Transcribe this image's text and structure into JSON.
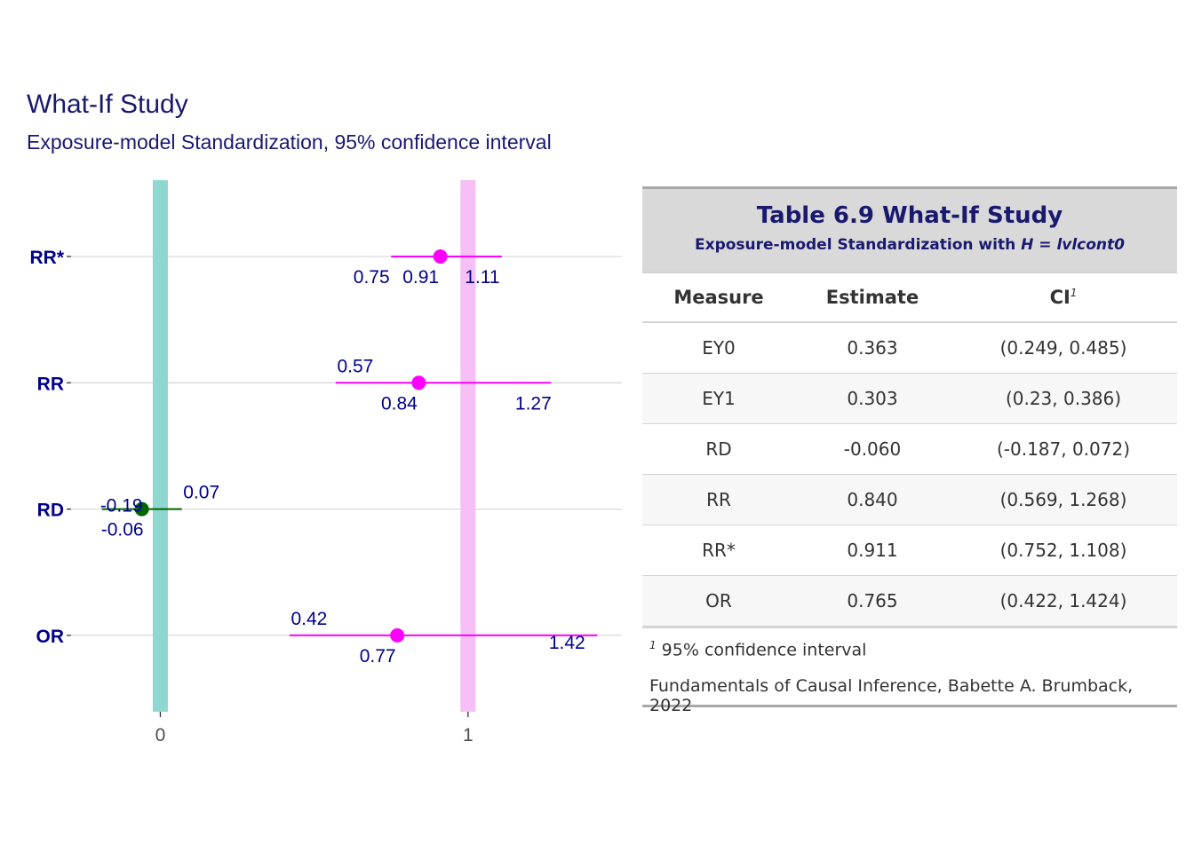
{
  "plot": {
    "title": "What-If Study",
    "subtitle": "Exposure-model Standardization, 95% confidence interval"
  },
  "chart_data": {
    "type": "forest",
    "categories": [
      "RR*",
      "RR",
      "RD",
      "OR"
    ],
    "points": [
      {
        "measure": "RR*",
        "estimate": 0.91,
        "lower": 0.75,
        "upper": 1.11,
        "estimate_label": "0.91",
        "lower_label": "0.75",
        "upper_label": "1.11",
        "color": "#ff00ff"
      },
      {
        "measure": "RR",
        "estimate": 0.84,
        "lower": 0.57,
        "upper": 1.27,
        "estimate_label": "0.84",
        "lower_label": "0.57",
        "upper_label": "1.27",
        "color": "#ff00ff"
      },
      {
        "measure": "RD",
        "estimate": -0.06,
        "lower": -0.19,
        "upper": 0.07,
        "estimate_label": "-0.06",
        "lower_label": "-0.19",
        "upper_label": "0.07",
        "color": "#006400"
      },
      {
        "measure": "OR",
        "estimate": 0.77,
        "lower": 0.42,
        "upper": 1.42,
        "estimate_label": "0.77",
        "lower_label": "0.42",
        "upper_label": "1.42",
        "color": "#ff00ff"
      }
    ],
    "reference_lines": [
      {
        "x": 0,
        "color": "#8fd8d2"
      },
      {
        "x": 1,
        "color": "#f6bff6"
      }
    ],
    "x_ticks": [
      {
        "value": 0,
        "label": "0"
      },
      {
        "value": 1,
        "label": "1"
      }
    ],
    "xlim": [
      -0.29,
      1.5
    ],
    "label_color": "#00008b",
    "grid": true
  },
  "table": {
    "title": "Table 6.9 What-If Study",
    "subtitle_prefix": "Exposure-model Standardization with ",
    "subtitle_var": "H",
    "subtitle_eq": " = ",
    "subtitle_value": "lvlcont0",
    "columns": {
      "measure": "Measure",
      "estimate": "Estimate",
      "ci": "CI",
      "ci_marker": "1"
    },
    "rows": [
      {
        "measure": "EY0",
        "estimate": "0.363",
        "ci": "(0.249, 0.485)"
      },
      {
        "measure": "EY1",
        "estimate": "0.303",
        "ci": "(0.23, 0.386)"
      },
      {
        "measure": "RD",
        "estimate": "-0.060",
        "ci": "(-0.187, 0.072)"
      },
      {
        "measure": "RR",
        "estimate": "0.840",
        "ci": "(0.569, 1.268)"
      },
      {
        "measure": "RR*",
        "estimate": "0.911",
        "ci": "(0.752, 1.108)"
      },
      {
        "measure": "OR",
        "estimate": "0.765",
        "ci": "(0.422, 1.424)"
      }
    ],
    "footnote_marker": "1",
    "footnote": " 95% confidence interval",
    "source": "Fundamentals of Causal Inference, Babette A. Brumback, 2022"
  }
}
